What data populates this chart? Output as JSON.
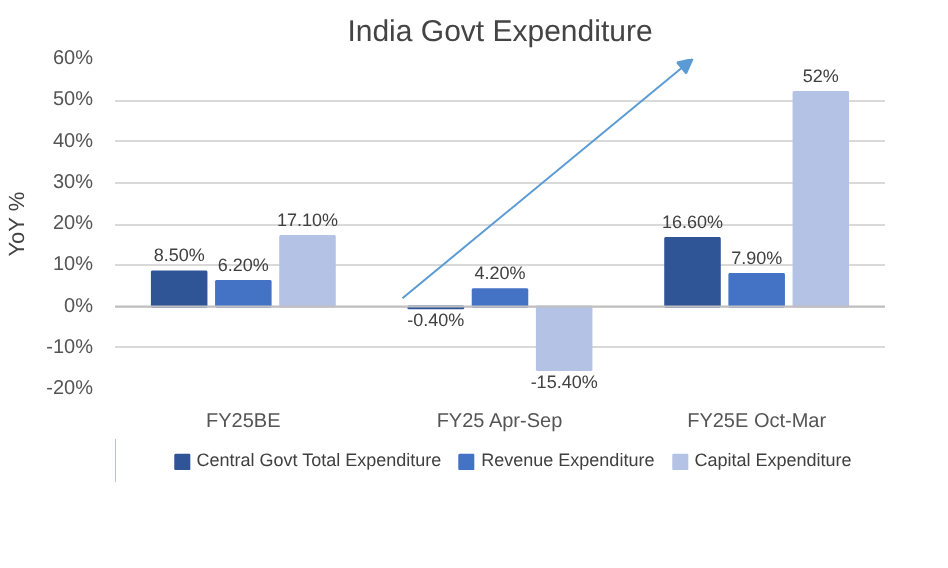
{
  "chart_data": {
    "type": "bar",
    "title": "India Govt Expenditure",
    "ylabel": "YoY %",
    "categories": [
      "FY25BE",
      "FY25 Apr-Sep",
      "FY25E Oct-Mar"
    ],
    "series": [
      {
        "name": "Central Govt Total Expenditure",
        "color": "#2f5597",
        "values": [
          8.5,
          -0.4,
          16.6
        ],
        "value_labels": [
          "8.50%",
          "-0.40%",
          "16.60%"
        ]
      },
      {
        "name": "Revenue Expenditure",
        "color": "#4472c4",
        "values": [
          6.2,
          4.2,
          7.9
        ],
        "value_labels": [
          "6.20%",
          "4.20%",
          "7.90%"
        ]
      },
      {
        "name": "Capital Expenditure",
        "color": "#b4c2e6",
        "values": [
          17.1,
          -15.4,
          52
        ],
        "value_labels": [
          "17.10%",
          "-15.40%",
          "52%"
        ]
      }
    ],
    "ylim": [
      -20,
      60
    ],
    "yticks": [
      {
        "value": -20,
        "label": "-20%"
      },
      {
        "value": -10,
        "label": "-10%"
      },
      {
        "value": 0,
        "label": "0%"
      },
      {
        "value": 10,
        "label": "10%"
      },
      {
        "value": 20,
        "label": "20%"
      },
      {
        "value": 30,
        "label": "30%"
      },
      {
        "value": 40,
        "label": "40%"
      },
      {
        "value": 50,
        "label": "50%"
      },
      {
        "value": 60,
        "label": "60%"
      }
    ],
    "grid": "y",
    "legend": "bottom"
  }
}
